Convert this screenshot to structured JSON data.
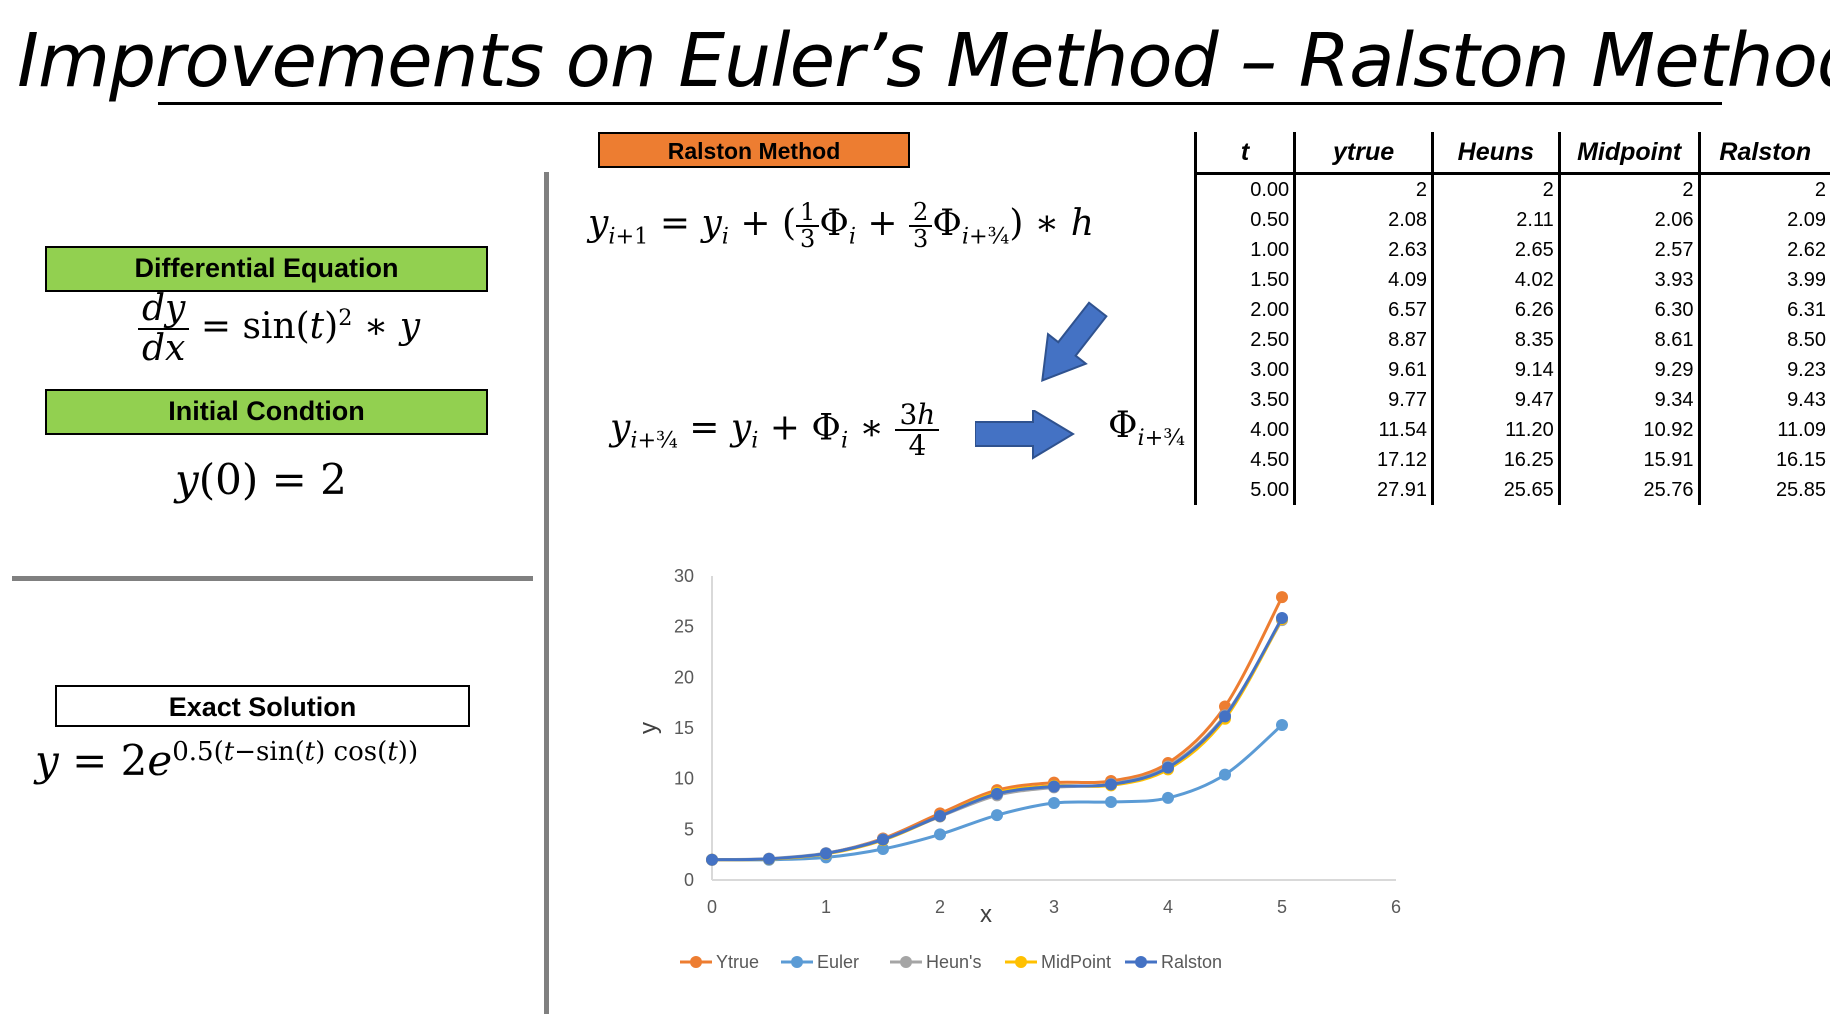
{
  "title": "Improvements on Euler’s Method – Ralston Method",
  "left_panel": {
    "differential_equation_label": "Differential Equation",
    "initial_condition_label": "Initial Condtion",
    "exact_solution_label": "Exact Solution"
  },
  "ralston_label": "Ralston Method",
  "table": {
    "headers": [
      "t",
      "ytrue",
      "Heuns",
      "Midpoint",
      "Ralston"
    ],
    "rows": [
      [
        "0.00",
        "2",
        "2",
        "2",
        "2"
      ],
      [
        "0.50",
        "2.08",
        "2.11",
        "2.06",
        "2.09"
      ],
      [
        "1.00",
        "2.63",
        "2.65",
        "2.57",
        "2.62"
      ],
      [
        "1.50",
        "4.09",
        "4.02",
        "3.93",
        "3.99"
      ],
      [
        "2.00",
        "6.57",
        "6.26",
        "6.30",
        "6.31"
      ],
      [
        "2.50",
        "8.87",
        "8.35",
        "8.61",
        "8.50"
      ],
      [
        "3.00",
        "9.61",
        "9.14",
        "9.29",
        "9.23"
      ],
      [
        "3.50",
        "9.77",
        "9.47",
        "9.34",
        "9.43"
      ],
      [
        "4.00",
        "11.54",
        "11.20",
        "10.92",
        "11.09"
      ],
      [
        "4.50",
        "17.12",
        "16.25",
        "15.91",
        "16.15"
      ],
      [
        "5.00",
        "27.91",
        "25.65",
        "25.76",
        "25.85"
      ]
    ]
  },
  "chart_data": {
    "type": "line",
    "xlabel": "x",
    "ylabel": "y",
    "xlim": [
      0,
      6
    ],
    "ylim": [
      0,
      30
    ],
    "xticks": [
      "0",
      "1",
      "2",
      "3",
      "4",
      "5",
      "6"
    ],
    "yticks": [
      "0",
      "5",
      "10",
      "15",
      "20",
      "25",
      "30"
    ],
    "x": [
      0,
      0.5,
      1,
      1.5,
      2,
      2.5,
      3,
      3.5,
      4,
      4.5,
      5
    ],
    "legend": "bottom",
    "grid": false,
    "series": [
      {
        "name": "Ytrue",
        "color": "#ed7d31",
        "values": [
          2,
          2.08,
          2.63,
          4.09,
          6.57,
          8.87,
          9.61,
          9.77,
          11.54,
          17.12,
          27.91
        ]
      },
      {
        "name": "Euler",
        "color": "#5b9bd5",
        "values": [
          2,
          2,
          2.23,
          3.06,
          4.5,
          6.4,
          7.6,
          7.7,
          8.1,
          10.4,
          15.3
        ]
      },
      {
        "name": "Heun's",
        "color": "#a5a5a5",
        "values": [
          2,
          2.11,
          2.65,
          4.02,
          6.26,
          8.35,
          9.14,
          9.47,
          11.2,
          16.25,
          25.65
        ]
      },
      {
        "name": "MidPoint",
        "color": "#ffc000",
        "values": [
          2,
          2.06,
          2.57,
          3.93,
          6.3,
          8.61,
          9.29,
          9.34,
          10.92,
          15.91,
          25.76
        ]
      },
      {
        "name": "Ralston",
        "color": "#4472c4",
        "values": [
          2,
          2.09,
          2.62,
          3.99,
          6.31,
          8.5,
          9.23,
          9.43,
          11.09,
          16.15,
          25.85
        ]
      }
    ]
  }
}
